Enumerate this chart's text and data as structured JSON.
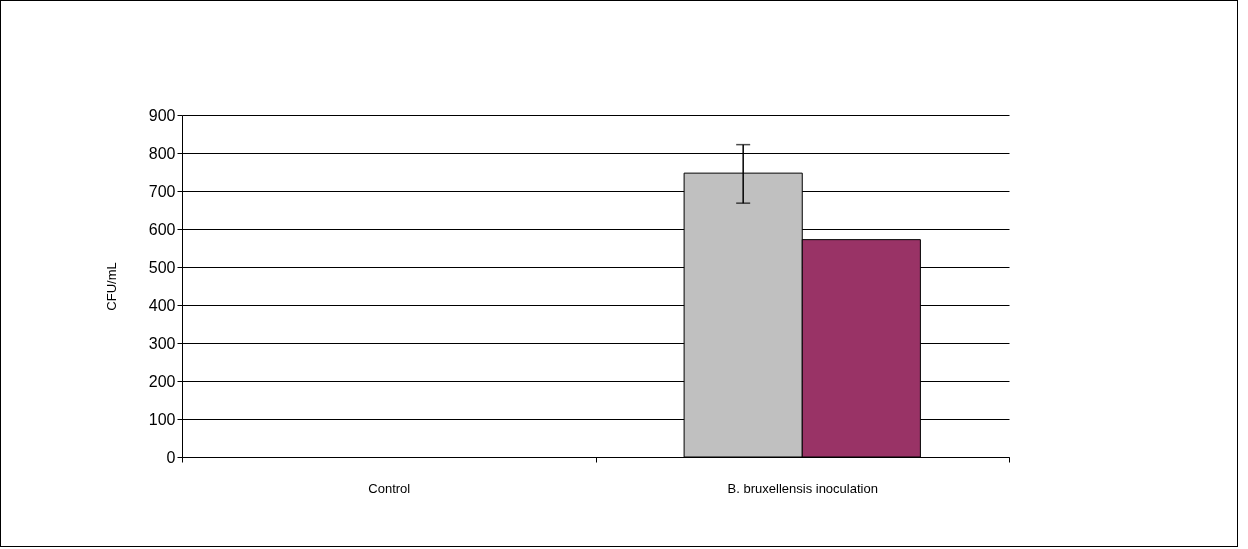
{
  "chart_data": {
    "type": "bar",
    "ylabel": "CFU/mL",
    "categories": [
      "Control",
      "B. bruxellensis inoculation"
    ],
    "series": [
      {
        "color": "#c0c0c0",
        "values": [
          0,
          747
        ],
        "errors": [
          null,
          [
            668,
            822
          ]
        ]
      },
      {
        "color": "#993366",
        "values": [
          0,
          572
        ]
      }
    ],
    "ylim": [
      0,
      900
    ],
    "yticks": [
      0,
      100,
      200,
      300,
      400,
      500,
      600,
      700,
      800,
      900
    ],
    "grid": "y"
  }
}
